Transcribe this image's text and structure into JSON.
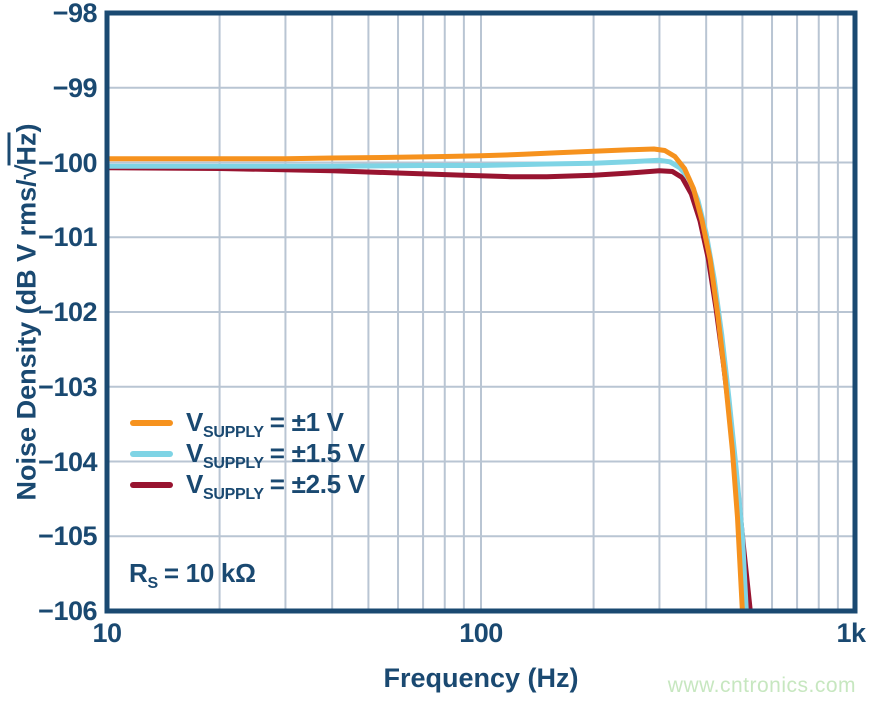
{
  "colors": {
    "navy": "#1a4971",
    "grid": "#b9c5d3",
    "orange": "#f6921e",
    "cyan": "#7fd4e5",
    "crimson": "#981430",
    "watermark_green": "#c7e7c0"
  },
  "watermark": "www.cntronics.com",
  "chart_data": {
    "type": "line",
    "title": "",
    "xlabel": "Frequency (Hz)",
    "ylabel": "Noise Density (dB V rms/√Hz)",
    "ylabel_parts": {
      "prefix": "Noise Density (dB V rms/",
      "radical": "√",
      "radicand": "Hz",
      "suffix": ")"
    },
    "x_axis": {
      "scale": "log",
      "min": 10,
      "max": 1000,
      "ticks": [
        {
          "value": 10,
          "label": "10"
        },
        {
          "value": 100,
          "label": "100"
        },
        {
          "value": 1000,
          "label": "1k"
        }
      ],
      "gridlines": [
        20,
        30,
        40,
        50,
        60,
        70,
        80,
        90,
        100,
        200,
        300,
        400,
        500,
        600,
        700,
        800,
        900
      ]
    },
    "y_axis": {
      "scale": "linear",
      "min": -106,
      "max": -98,
      "ticks": [
        {
          "value": -98,
          "label": "−98"
        },
        {
          "value": -99,
          "label": "−99"
        },
        {
          "value": -100,
          "label": "−100"
        },
        {
          "value": -101,
          "label": "−101"
        },
        {
          "value": -102,
          "label": "−102"
        },
        {
          "value": -103,
          "label": "−103"
        },
        {
          "value": -104,
          "label": "−104"
        },
        {
          "value": -105,
          "label": "−105"
        },
        {
          "value": -106,
          "label": "−106"
        }
      ],
      "gridlines": [
        -99,
        -100,
        -101,
        -102,
        -103,
        -104,
        -105
      ]
    },
    "legend_position": "inside-left-middle",
    "grid": true,
    "series": [
      {
        "name": "VSUPPLY = ±2.5 V",
        "legend": {
          "main": "V",
          "sub": "SUPPLY",
          "rest": "= ±2.5 V"
        },
        "color": "#981430",
        "points": [
          [
            10,
            -100.07
          ],
          [
            20,
            -100.08
          ],
          [
            40,
            -100.11
          ],
          [
            60,
            -100.14
          ],
          [
            90,
            -100.17
          ],
          [
            120,
            -100.19
          ],
          [
            150,
            -100.19
          ],
          [
            200,
            -100.17
          ],
          [
            250,
            -100.14
          ],
          [
            300,
            -100.11
          ],
          [
            325,
            -100.12
          ],
          [
            345,
            -100.2
          ],
          [
            365,
            -100.42
          ],
          [
            385,
            -100.78
          ],
          [
            405,
            -101.28
          ],
          [
            425,
            -101.95
          ],
          [
            445,
            -102.7
          ],
          [
            465,
            -103.5
          ],
          [
            485,
            -104.35
          ],
          [
            505,
            -105.2
          ],
          [
            525,
            -106.0
          ]
        ]
      },
      {
        "name": "VSUPPLY = ±1.5 V",
        "legend": {
          "main": "V",
          "sub": "SUPPLY",
          "rest": "= ±1.5 V"
        },
        "color": "#7fd4e5",
        "points": [
          [
            10,
            -100.05
          ],
          [
            20,
            -100.05
          ],
          [
            40,
            -100.05
          ],
          [
            70,
            -100.04
          ],
          [
            100,
            -100.04
          ],
          [
            150,
            -100.02
          ],
          [
            200,
            -100.01
          ],
          [
            250,
            -99.99
          ],
          [
            300,
            -99.97
          ],
          [
            320,
            -99.99
          ],
          [
            340,
            -100.07
          ],
          [
            360,
            -100.22
          ],
          [
            380,
            -100.5
          ],
          [
            400,
            -100.95
          ],
          [
            420,
            -101.55
          ],
          [
            440,
            -102.3
          ],
          [
            460,
            -103.15
          ],
          [
            480,
            -104.05
          ],
          [
            500,
            -105.0
          ],
          [
            512,
            -106.0
          ]
        ]
      },
      {
        "name": "VSUPPLY = ±1 V",
        "legend": {
          "main": "V",
          "sub": "SUPPLY",
          "rest": "= ±1 V"
        },
        "color": "#f6921e",
        "points": [
          [
            10,
            -99.95
          ],
          [
            15,
            -99.95
          ],
          [
            20,
            -99.95
          ],
          [
            30,
            -99.95
          ],
          [
            40,
            -99.94
          ],
          [
            60,
            -99.93
          ],
          [
            80,
            -99.92
          ],
          [
            100,
            -99.91
          ],
          [
            130,
            -99.89
          ],
          [
            160,
            -99.87
          ],
          [
            200,
            -99.85
          ],
          [
            250,
            -99.83
          ],
          [
            290,
            -99.82
          ],
          [
            310,
            -99.84
          ],
          [
            330,
            -99.92
          ],
          [
            350,
            -100.08
          ],
          [
            370,
            -100.35
          ],
          [
            390,
            -100.78
          ],
          [
            410,
            -101.3
          ],
          [
            430,
            -102.05
          ],
          [
            450,
            -102.9
          ],
          [
            470,
            -103.85
          ],
          [
            485,
            -104.75
          ],
          [
            500,
            -106.0
          ]
        ]
      }
    ],
    "legend_order": [
      2,
      1,
      0
    ],
    "annotation": "RS = 10 kΩ",
    "annotation_parts": {
      "main": "R",
      "sub": "S",
      "rest": "= 10 kΩ"
    }
  }
}
